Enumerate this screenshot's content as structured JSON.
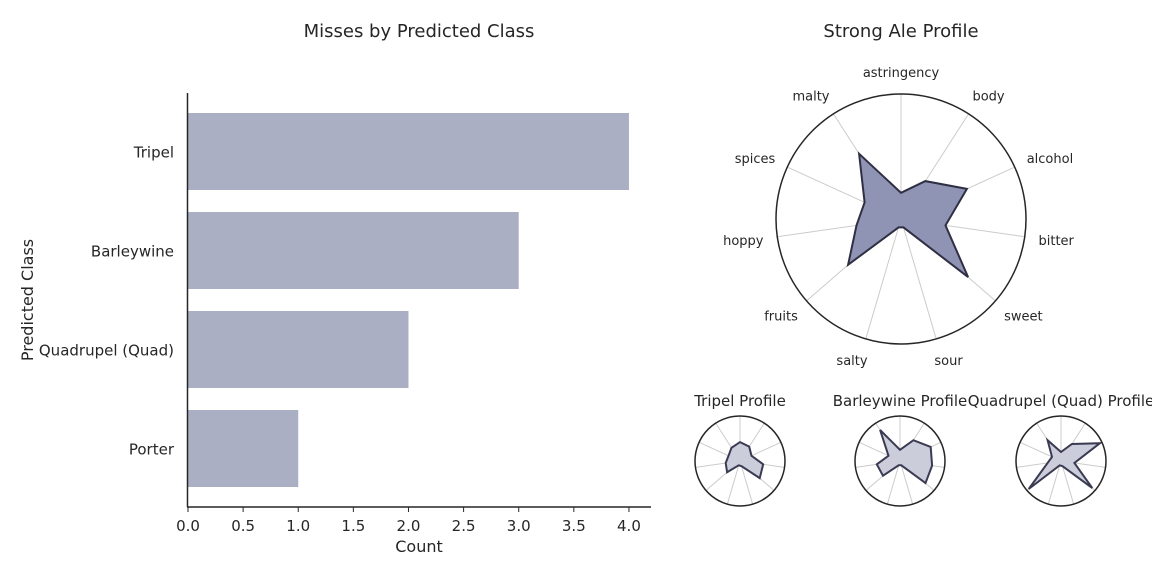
{
  "chart_data": [
    {
      "type": "bar",
      "orientation": "horizontal",
      "title": "Misses by Predicted Class",
      "xlabel": "Count",
      "ylabel": "Predicted Class",
      "categories": [
        "Tripel",
        "Barleywine",
        "Quadrupel (Quad)",
        "Porter"
      ],
      "values": [
        4,
        3,
        2,
        1
      ],
      "xlim": [
        0,
        4.2
      ],
      "xticks": [
        "0.0",
        "0.5",
        "1.0",
        "1.5",
        "2.0",
        "2.5",
        "3.0",
        "3.5",
        "4.0"
      ],
      "bar_color": "#abafc4",
      "grid": false
    },
    {
      "type": "radar",
      "title": "Strong Ale Profile",
      "axes": [
        "astringency",
        "body",
        "alcohol",
        "bitter",
        "sweet",
        "sour",
        "salty",
        "fruits",
        "hoppy",
        "spices",
        "malty"
      ],
      "values": [
        0.21,
        0.36,
        0.58,
        0.36,
        0.71,
        0.07,
        0.07,
        0.56,
        0.36,
        0.32,
        0.62
      ],
      "range": [
        0,
        1
      ],
      "fill_color": "#8f93b4",
      "line_color": "#2f2f44"
    },
    {
      "type": "radar",
      "title": "Tripel Profile",
      "axes": [
        "astringency",
        "body",
        "alcohol",
        "bitter",
        "sweet",
        "sour",
        "salty",
        "fruits",
        "hoppy",
        "spices",
        "malty"
      ],
      "values": [
        0.42,
        0.38,
        0.28,
        0.52,
        0.58,
        0.12,
        0.1,
        0.38,
        0.32,
        0.28,
        0.35
      ],
      "range": [
        0,
        1
      ],
      "fill_color": "#cbcddb",
      "line_color": "#3a3a52"
    },
    {
      "type": "radar",
      "title": "Barleywine Profile",
      "axes": [
        "astringency",
        "body",
        "alcohol",
        "bitter",
        "sweet",
        "sour",
        "salty",
        "fruits",
        "hoppy",
        "spices",
        "malty"
      ],
      "values": [
        0.25,
        0.55,
        0.75,
        0.72,
        0.75,
        0.1,
        0.1,
        0.5,
        0.52,
        0.28,
        0.82
      ],
      "range": [
        0,
        1
      ],
      "fill_color": "#cbcddb",
      "line_color": "#3a3a52"
    },
    {
      "type": "radar",
      "title": "Quadrupel (Quad) Profile",
      "axes": [
        "astringency",
        "body",
        "alcohol",
        "bitter",
        "sweet",
        "sour",
        "salty",
        "fruits",
        "hoppy",
        "spices",
        "malty"
      ],
      "values": [
        0.2,
        0.45,
        0.95,
        0.3,
        0.92,
        0.12,
        0.1,
        0.95,
        0.3,
        0.22,
        0.55
      ],
      "range": [
        0,
        1
      ],
      "fill_color": "#cbcddb",
      "line_color": "#3a3a52"
    }
  ]
}
